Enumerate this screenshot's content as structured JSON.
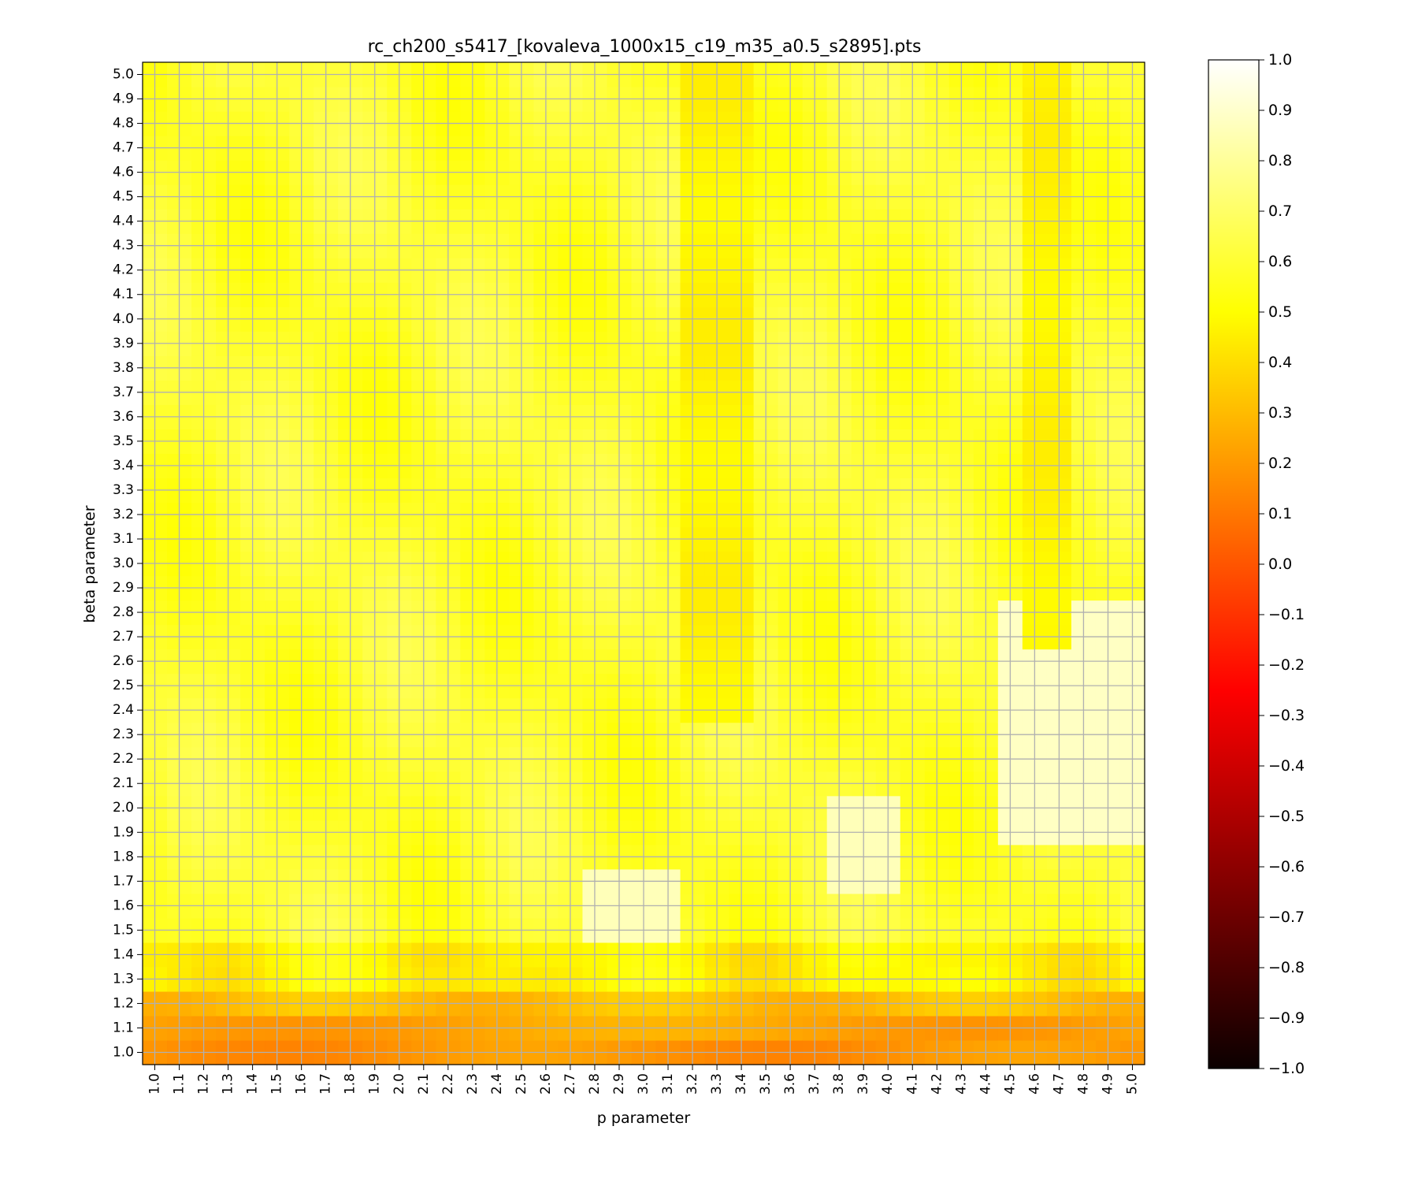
{
  "chart_data": {
    "type": "heatmap",
    "title": "rc_ch200_s5417_[kovaleva_1000x15_c19_m35_a0.5_s2895].pts",
    "xlabel": "p parameter",
    "ylabel": "beta parameter",
    "x_ticks": [
      "1.0",
      "1.1",
      "1.2",
      "1.3",
      "1.4",
      "1.5",
      "1.6",
      "1.7",
      "1.8",
      "1.9",
      "2.0",
      "2.1",
      "2.2",
      "2.3",
      "2.4",
      "2.5",
      "2.6",
      "2.7",
      "2.8",
      "2.9",
      "3.0",
      "3.1",
      "3.2",
      "3.3",
      "3.4",
      "3.5",
      "3.6",
      "3.7",
      "3.8",
      "3.9",
      "4.0",
      "4.1",
      "4.2",
      "4.3",
      "4.4",
      "4.5",
      "4.6",
      "4.7",
      "4.8",
      "4.9",
      "5.0"
    ],
    "y_ticks": [
      "1.0",
      "1.1",
      "1.2",
      "1.3",
      "1.4",
      "1.5",
      "1.6",
      "1.7",
      "1.8",
      "1.9",
      "2.0",
      "2.1",
      "2.2",
      "2.3",
      "2.4",
      "2.5",
      "2.6",
      "2.7",
      "2.8",
      "2.9",
      "3.0",
      "3.1",
      "3.2",
      "3.3",
      "3.4",
      "3.5",
      "3.6",
      "3.7",
      "3.8",
      "3.9",
      "4.0",
      "4.1",
      "4.2",
      "4.3",
      "4.4",
      "4.5",
      "4.6",
      "4.7",
      "4.8",
      "4.9",
      "5.0"
    ],
    "colormap": "hot",
    "vmin": -1.0,
    "vmax": 1.0,
    "colorbar_ticks": [
      "1.0",
      "0.9",
      "0.8",
      "0.7",
      "0.6",
      "0.5",
      "0.4",
      "0.3",
      "0.2",
      "0.1",
      "0.0",
      "−0.1",
      "−0.2",
      "−0.3",
      "−0.4",
      "−0.5",
      "−0.6",
      "−0.7",
      "−0.8",
      "−0.9",
      "−1.0"
    ],
    "grid": true,
    "value_summary": {
      "overall_range": [
        0.15,
        0.95
      ],
      "rows_beta_1.0_to_1.1": "0.15-0.30 (orange)",
      "row_beta_1.2": "0.25-0.35",
      "rows_beta_1.3_to_2.0": "0.45-0.75",
      "rows_beta_2.1_to_5.0": "0.50-0.75 (yellow)",
      "band_p_3.2_to_3.4": "0.45 (darker yellow)",
      "band_p_4.6_to_4.7": "0.45 (darker yellow)",
      "region_p_4.5_to_5.0_beta_1.9_to_2.8": "0.85-0.95 (light)"
    }
  },
  "colors": {
    "grid": "#b0b0b0",
    "axis": "#000000",
    "background": "#ffffff"
  }
}
